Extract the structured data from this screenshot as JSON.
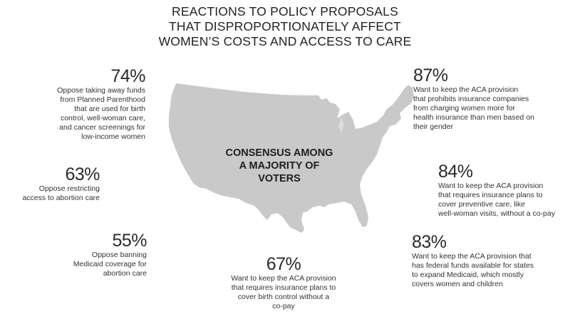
{
  "title": {
    "line1": "REACTIONS TO POLICY PROPOSALS",
    "line2": "THAT DISPROPORTIONATELY AFFECT",
    "line3": "WOMEN’S COSTS AND ACCESS TO CARE"
  },
  "center": {
    "line1": "CONSENSUS AMONG",
    "line2": "A MAJORITY OF",
    "line3": "VOTERS",
    "map_icon": "usa-map-icon"
  },
  "colors": {
    "map_fill": "#c9c9c9",
    "text": "#2b2b2b"
  },
  "stats": {
    "s74": {
      "pct": "74%",
      "lines": [
        "Oppose taking away funds",
        "from Planned Parenthood",
        "that are used for birth",
        "control, well-woman care,",
        "and cancer screenings for",
        "low-income women"
      ]
    },
    "s63": {
      "pct": "63%",
      "lines": [
        "Oppose restricting",
        "access to abortion care"
      ]
    },
    "s55": {
      "pct": "55%",
      "lines": [
        "Oppose banning",
        "Medicaid coverage for",
        "abortion care"
      ]
    },
    "s67": {
      "pct": "67%",
      "lines": [
        "Want to keep the ACA provision",
        "that requires insurance plans to",
        "cover birth control without a",
        "co-pay"
      ]
    },
    "s87": {
      "pct": "87%",
      "lines": [
        "Want to keep the ACA provision",
        "that prohibits insurance companies",
        "from charging women more for",
        "health insurance than men based on",
        "their gender"
      ]
    },
    "s84": {
      "pct": "84%",
      "lines": [
        "Want to keep the ACA provision",
        "that requires insurance plans to",
        "cover preventive care, like",
        "well-woman visits, without a co-pay"
      ]
    },
    "s83": {
      "pct": "83%",
      "lines": [
        "Want to keep the ACA provision that",
        "has federal funds available for states",
        "to expand Medicaid, which mostly",
        "covers women and children"
      ]
    }
  }
}
